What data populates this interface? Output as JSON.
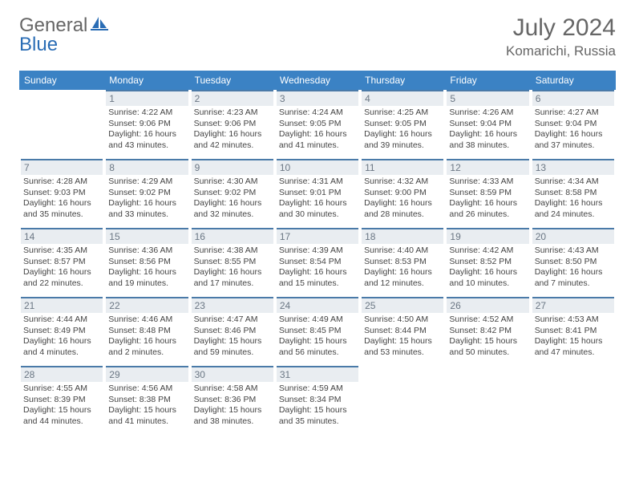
{
  "brand": {
    "part1": "General",
    "part2": "Blue"
  },
  "title": "July 2024",
  "location": "Komarichi, Russia",
  "colors": {
    "header_bg": "#3b82c4",
    "header_text": "#ffffff",
    "daybar_bg": "#e9edf1",
    "daybar_border": "#4a7aa8",
    "daynum_text": "#6b7784",
    "body_text": "#444444",
    "page_bg": "#ffffff"
  },
  "weekdays": [
    "Sunday",
    "Monday",
    "Tuesday",
    "Wednesday",
    "Thursday",
    "Friday",
    "Saturday"
  ],
  "weeks": [
    [
      null,
      {
        "n": "1",
        "sr": "Sunrise: 4:22 AM",
        "ss": "Sunset: 9:06 PM",
        "dl": "Daylight: 16 hours and 43 minutes."
      },
      {
        "n": "2",
        "sr": "Sunrise: 4:23 AM",
        "ss": "Sunset: 9:06 PM",
        "dl": "Daylight: 16 hours and 42 minutes."
      },
      {
        "n": "3",
        "sr": "Sunrise: 4:24 AM",
        "ss": "Sunset: 9:05 PM",
        "dl": "Daylight: 16 hours and 41 minutes."
      },
      {
        "n": "4",
        "sr": "Sunrise: 4:25 AM",
        "ss": "Sunset: 9:05 PM",
        "dl": "Daylight: 16 hours and 39 minutes."
      },
      {
        "n": "5",
        "sr": "Sunrise: 4:26 AM",
        "ss": "Sunset: 9:04 PM",
        "dl": "Daylight: 16 hours and 38 minutes."
      },
      {
        "n": "6",
        "sr": "Sunrise: 4:27 AM",
        "ss": "Sunset: 9:04 PM",
        "dl": "Daylight: 16 hours and 37 minutes."
      }
    ],
    [
      {
        "n": "7",
        "sr": "Sunrise: 4:28 AM",
        "ss": "Sunset: 9:03 PM",
        "dl": "Daylight: 16 hours and 35 minutes."
      },
      {
        "n": "8",
        "sr": "Sunrise: 4:29 AM",
        "ss": "Sunset: 9:02 PM",
        "dl": "Daylight: 16 hours and 33 minutes."
      },
      {
        "n": "9",
        "sr": "Sunrise: 4:30 AM",
        "ss": "Sunset: 9:02 PM",
        "dl": "Daylight: 16 hours and 32 minutes."
      },
      {
        "n": "10",
        "sr": "Sunrise: 4:31 AM",
        "ss": "Sunset: 9:01 PM",
        "dl": "Daylight: 16 hours and 30 minutes."
      },
      {
        "n": "11",
        "sr": "Sunrise: 4:32 AM",
        "ss": "Sunset: 9:00 PM",
        "dl": "Daylight: 16 hours and 28 minutes."
      },
      {
        "n": "12",
        "sr": "Sunrise: 4:33 AM",
        "ss": "Sunset: 8:59 PM",
        "dl": "Daylight: 16 hours and 26 minutes."
      },
      {
        "n": "13",
        "sr": "Sunrise: 4:34 AM",
        "ss": "Sunset: 8:58 PM",
        "dl": "Daylight: 16 hours and 24 minutes."
      }
    ],
    [
      {
        "n": "14",
        "sr": "Sunrise: 4:35 AM",
        "ss": "Sunset: 8:57 PM",
        "dl": "Daylight: 16 hours and 22 minutes."
      },
      {
        "n": "15",
        "sr": "Sunrise: 4:36 AM",
        "ss": "Sunset: 8:56 PM",
        "dl": "Daylight: 16 hours and 19 minutes."
      },
      {
        "n": "16",
        "sr": "Sunrise: 4:38 AM",
        "ss": "Sunset: 8:55 PM",
        "dl": "Daylight: 16 hours and 17 minutes."
      },
      {
        "n": "17",
        "sr": "Sunrise: 4:39 AM",
        "ss": "Sunset: 8:54 PM",
        "dl": "Daylight: 16 hours and 15 minutes."
      },
      {
        "n": "18",
        "sr": "Sunrise: 4:40 AM",
        "ss": "Sunset: 8:53 PM",
        "dl": "Daylight: 16 hours and 12 minutes."
      },
      {
        "n": "19",
        "sr": "Sunrise: 4:42 AM",
        "ss": "Sunset: 8:52 PM",
        "dl": "Daylight: 16 hours and 10 minutes."
      },
      {
        "n": "20",
        "sr": "Sunrise: 4:43 AM",
        "ss": "Sunset: 8:50 PM",
        "dl": "Daylight: 16 hours and 7 minutes."
      }
    ],
    [
      {
        "n": "21",
        "sr": "Sunrise: 4:44 AM",
        "ss": "Sunset: 8:49 PM",
        "dl": "Daylight: 16 hours and 4 minutes."
      },
      {
        "n": "22",
        "sr": "Sunrise: 4:46 AM",
        "ss": "Sunset: 8:48 PM",
        "dl": "Daylight: 16 hours and 2 minutes."
      },
      {
        "n": "23",
        "sr": "Sunrise: 4:47 AM",
        "ss": "Sunset: 8:46 PM",
        "dl": "Daylight: 15 hours and 59 minutes."
      },
      {
        "n": "24",
        "sr": "Sunrise: 4:49 AM",
        "ss": "Sunset: 8:45 PM",
        "dl": "Daylight: 15 hours and 56 minutes."
      },
      {
        "n": "25",
        "sr": "Sunrise: 4:50 AM",
        "ss": "Sunset: 8:44 PM",
        "dl": "Daylight: 15 hours and 53 minutes."
      },
      {
        "n": "26",
        "sr": "Sunrise: 4:52 AM",
        "ss": "Sunset: 8:42 PM",
        "dl": "Daylight: 15 hours and 50 minutes."
      },
      {
        "n": "27",
        "sr": "Sunrise: 4:53 AM",
        "ss": "Sunset: 8:41 PM",
        "dl": "Daylight: 15 hours and 47 minutes."
      }
    ],
    [
      {
        "n": "28",
        "sr": "Sunrise: 4:55 AM",
        "ss": "Sunset: 8:39 PM",
        "dl": "Daylight: 15 hours and 44 minutes."
      },
      {
        "n": "29",
        "sr": "Sunrise: 4:56 AM",
        "ss": "Sunset: 8:38 PM",
        "dl": "Daylight: 15 hours and 41 minutes."
      },
      {
        "n": "30",
        "sr": "Sunrise: 4:58 AM",
        "ss": "Sunset: 8:36 PM",
        "dl": "Daylight: 15 hours and 38 minutes."
      },
      {
        "n": "31",
        "sr": "Sunrise: 4:59 AM",
        "ss": "Sunset: 8:34 PM",
        "dl": "Daylight: 15 hours and 35 minutes."
      },
      null,
      null,
      null
    ]
  ]
}
